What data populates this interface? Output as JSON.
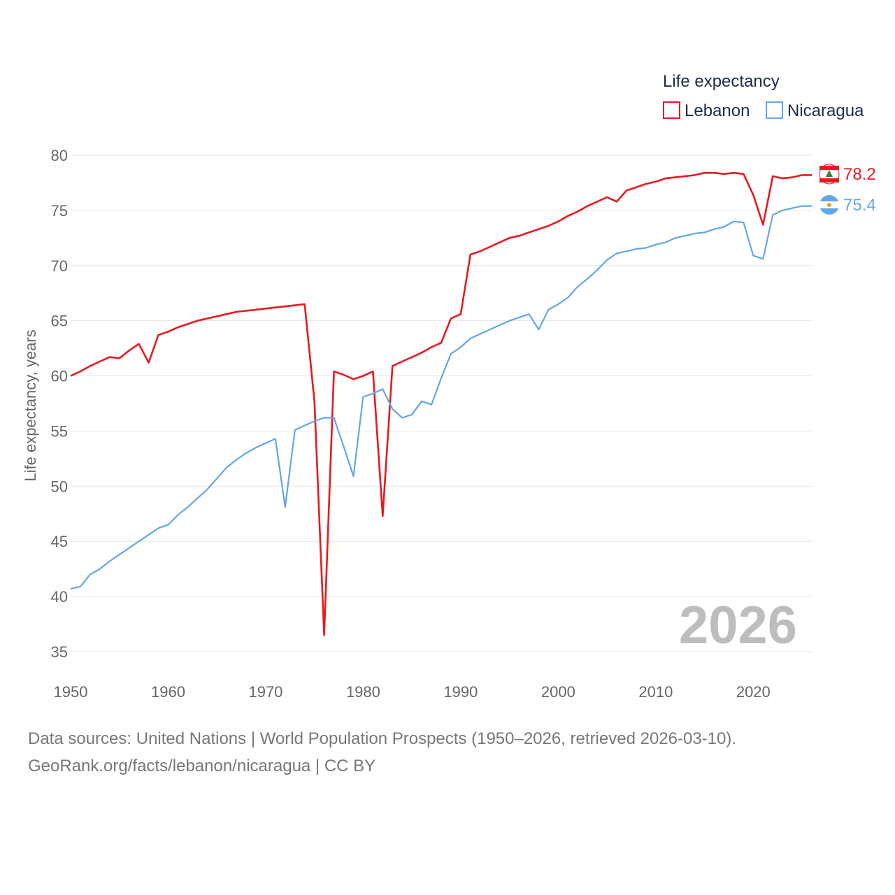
{
  "colors": {
    "lebanon": "#e8191f",
    "nicaragua": "#62a6e6",
    "grid": "#e6e6e6",
    "text": "#666666",
    "year": "#bdbdbd"
  },
  "legend": {
    "title": "Life expectancy",
    "items": [
      "Lebanon",
      "Nicaragua"
    ]
  },
  "footer": {
    "line1": "Data sources: United Nations | World Population Prospects (1950–2026, retrieved 2026-03-10).",
    "line2": "GeoRank.org/facts/lebanon/nicaragua | CC BY"
  },
  "chart_data": {
    "type": "line",
    "title": "Life expectancy",
    "xlabel": "",
    "ylabel": "Life expectancy, years",
    "xlim": [
      1950,
      2026
    ],
    "ylim": [
      35,
      80
    ],
    "x_ticks": [
      1950,
      1960,
      1970,
      1980,
      1990,
      2000,
      2010,
      2020
    ],
    "y_ticks": [
      35,
      40,
      45,
      50,
      55,
      60,
      65,
      70,
      75,
      80
    ],
    "year_label": "2026",
    "end_labels": [
      "78.2",
      "75.4"
    ],
    "series": [
      {
        "name": "Lebanon",
        "points": [
          [
            1950,
            60.0
          ],
          [
            1951,
            60.4
          ],
          [
            1952,
            60.9
          ],
          [
            1953,
            61.3
          ],
          [
            1954,
            61.7
          ],
          [
            1955,
            61.6
          ],
          [
            1956,
            62.3
          ],
          [
            1957,
            62.9
          ],
          [
            1958,
            61.2
          ],
          [
            1959,
            63.7
          ],
          [
            1960,
            64.0
          ],
          [
            1961,
            64.4
          ],
          [
            1962,
            64.7
          ],
          [
            1963,
            65.0
          ],
          [
            1964,
            65.2
          ],
          [
            1965,
            65.4
          ],
          [
            1966,
            65.6
          ],
          [
            1967,
            65.8
          ],
          [
            1968,
            65.9
          ],
          [
            1969,
            66.0
          ],
          [
            1970,
            66.1
          ],
          [
            1971,
            66.2
          ],
          [
            1972,
            66.3
          ],
          [
            1973,
            66.4
          ],
          [
            1974,
            66.5
          ],
          [
            1975,
            57.7
          ],
          [
            1976,
            36.5
          ],
          [
            1977,
            60.4
          ],
          [
            1978,
            60.1
          ],
          [
            1979,
            59.7
          ],
          [
            1980,
            60.0
          ],
          [
            1981,
            60.4
          ],
          [
            1982,
            47.3
          ],
          [
            1983,
            60.9
          ],
          [
            1984,
            61.3
          ],
          [
            1985,
            61.7
          ],
          [
            1986,
            62.1
          ],
          [
            1987,
            62.6
          ],
          [
            1988,
            63.0
          ],
          [
            1989,
            65.2
          ],
          [
            1990,
            65.6
          ],
          [
            1991,
            71.0
          ],
          [
            1992,
            71.3
          ],
          [
            1993,
            71.7
          ],
          [
            1994,
            72.1
          ],
          [
            1995,
            72.5
          ],
          [
            1996,
            72.7
          ],
          [
            1997,
            73.0
          ],
          [
            1998,
            73.3
          ],
          [
            1999,
            73.6
          ],
          [
            2000,
            74.0
          ],
          [
            2001,
            74.5
          ],
          [
            2002,
            74.9
          ],
          [
            2003,
            75.4
          ],
          [
            2004,
            75.8
          ],
          [
            2005,
            76.2
          ],
          [
            2006,
            75.8
          ],
          [
            2007,
            76.8
          ],
          [
            2008,
            77.1
          ],
          [
            2009,
            77.4
          ],
          [
            2010,
            77.6
          ],
          [
            2011,
            77.9
          ],
          [
            2012,
            78.0
          ],
          [
            2013,
            78.1
          ],
          [
            2014,
            78.2
          ],
          [
            2015,
            78.4
          ],
          [
            2016,
            78.4
          ],
          [
            2017,
            78.3
          ],
          [
            2018,
            78.4
          ],
          [
            2019,
            78.3
          ],
          [
            2020,
            76.4
          ],
          [
            2021,
            73.7
          ],
          [
            2022,
            78.1
          ],
          [
            2023,
            77.9
          ],
          [
            2024,
            78.0
          ],
          [
            2025,
            78.2
          ],
          [
            2026,
            78.2
          ]
        ]
      },
      {
        "name": "Nicaragua",
        "points": [
          [
            1950,
            40.7
          ],
          [
            1951,
            40.9
          ],
          [
            1952,
            42.0
          ],
          [
            1953,
            42.5
          ],
          [
            1954,
            43.2
          ],
          [
            1955,
            43.8
          ],
          [
            1956,
            44.4
          ],
          [
            1957,
            45.0
          ],
          [
            1958,
            45.6
          ],
          [
            1959,
            46.2
          ],
          [
            1960,
            46.5
          ],
          [
            1961,
            47.4
          ],
          [
            1962,
            48.1
          ],
          [
            1963,
            48.9
          ],
          [
            1964,
            49.7
          ],
          [
            1965,
            50.7
          ],
          [
            1966,
            51.7
          ],
          [
            1967,
            52.4
          ],
          [
            1968,
            53.0
          ],
          [
            1969,
            53.5
          ],
          [
            1970,
            53.9
          ],
          [
            1971,
            54.3
          ],
          [
            1972,
            48.1
          ],
          [
            1973,
            55.1
          ],
          [
            1974,
            55.5
          ],
          [
            1975,
            55.9
          ],
          [
            1976,
            56.2
          ],
          [
            1977,
            56.2
          ],
          [
            1978,
            53.6
          ],
          [
            1979,
            50.9
          ],
          [
            1980,
            58.1
          ],
          [
            1981,
            58.4
          ],
          [
            1982,
            58.8
          ],
          [
            1983,
            57.0
          ],
          [
            1984,
            56.2
          ],
          [
            1985,
            56.5
          ],
          [
            1986,
            57.7
          ],
          [
            1987,
            57.4
          ],
          [
            1988,
            59.8
          ],
          [
            1989,
            62.0
          ],
          [
            1990,
            62.6
          ],
          [
            1991,
            63.4
          ],
          [
            1992,
            63.8
          ],
          [
            1993,
            64.2
          ],
          [
            1994,
            64.6
          ],
          [
            1995,
            65.0
          ],
          [
            1996,
            65.3
          ],
          [
            1997,
            65.6
          ],
          [
            1998,
            64.2
          ],
          [
            1999,
            66.0
          ],
          [
            2000,
            66.5
          ],
          [
            2001,
            67.1
          ],
          [
            2002,
            68.1
          ],
          [
            2003,
            68.8
          ],
          [
            2004,
            69.6
          ],
          [
            2005,
            70.5
          ],
          [
            2006,
            71.1
          ],
          [
            2007,
            71.3
          ],
          [
            2008,
            71.5
          ],
          [
            2009,
            71.6
          ],
          [
            2010,
            71.9
          ],
          [
            2011,
            72.1
          ],
          [
            2012,
            72.5
          ],
          [
            2013,
            72.7
          ],
          [
            2014,
            72.9
          ],
          [
            2015,
            73.0
          ],
          [
            2016,
            73.3
          ],
          [
            2017,
            73.5
          ],
          [
            2018,
            74.0
          ],
          [
            2019,
            73.9
          ],
          [
            2020,
            70.9
          ],
          [
            2021,
            70.6
          ],
          [
            2022,
            74.6
          ],
          [
            2023,
            75.0
          ],
          [
            2024,
            75.2
          ],
          [
            2025,
            75.4
          ],
          [
            2026,
            75.4
          ]
        ]
      }
    ]
  }
}
